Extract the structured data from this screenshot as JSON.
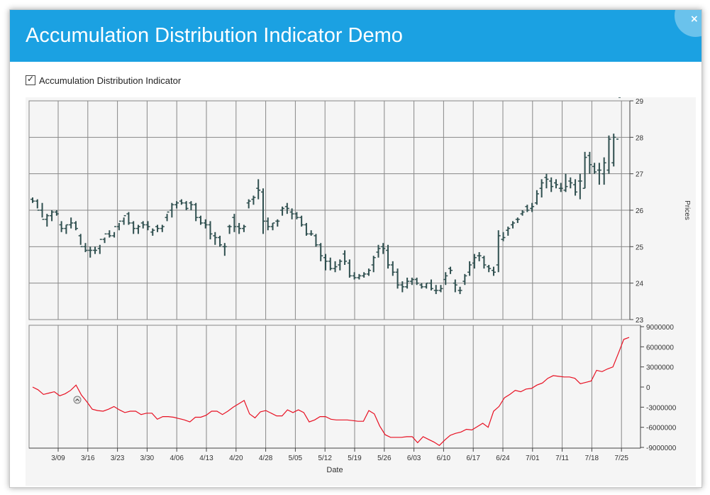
{
  "window": {
    "title": "Accumulation Distribution Indicator Demo",
    "close_glyph": "×",
    "header_color": "#1ba1e2"
  },
  "controls": {
    "indicator_checkbox": {
      "checked": true,
      "glyph": "✓",
      "label": "Accumulation Distribution Indicator"
    }
  },
  "icons": {
    "close": "close-icon",
    "checkbox": "check-icon",
    "collapse": "chevron-up-icon"
  },
  "chart_data": [
    {
      "type": "ohlc",
      "ylabel": "Prices",
      "ylim": [
        23,
        29
      ],
      "yticks": [
        "23",
        "24",
        "25",
        "26",
        "27",
        "28",
        "29"
      ],
      "grid": true,
      "bar_color": "#2f4f4f",
      "series": [
        {
          "o": [
            26.3,
            26.25,
            26.0,
            25.75,
            25.85,
            25.95,
            25.6,
            25.5,
            25.6,
            25.65,
            25.3,
            25.0,
            24.9,
            24.9,
            24.95,
            25.2,
            25.35,
            25.3,
            25.55,
            25.7,
            25.9,
            25.65,
            25.5,
            25.65,
            25.6,
            25.4,
            25.55,
            25.5,
            25.8,
            26.0,
            26.15,
            26.25,
            26.2,
            26.2,
            26.15,
            25.8,
            25.65,
            25.6,
            25.3,
            25.25,
            25.0,
            25.55,
            25.8,
            25.55,
            25.5,
            26.2,
            26.3,
            26.6,
            26.5,
            25.7,
            25.55,
            25.7,
            26.0,
            26.1,
            25.95,
            25.9,
            25.8,
            25.6,
            25.35,
            25.3,
            25.05,
            24.7,
            24.6,
            24.4,
            24.5,
            24.8,
            24.55,
            24.2,
            24.15,
            24.2,
            24.25,
            24.5,
            24.85,
            25.0,
            24.9,
            24.5,
            24.3,
            23.95,
            23.9,
            24.05,
            24.1,
            23.95,
            23.9,
            24.0,
            23.8,
            23.8,
            24.1,
            24.4,
            24.0,
            23.8,
            24.05,
            24.3,
            24.55,
            24.75,
            24.7,
            24.45,
            24.35,
            24.5,
            25.2,
            25.45,
            25.6,
            25.75,
            25.9,
            26.1,
            26.05,
            26.2,
            26.6,
            26.9,
            26.8,
            26.75,
            26.6,
            26.55,
            26.8,
            26.7,
            26.8,
            26.6,
            27.5,
            27.2,
            27.1,
            27.0,
            27.1,
            27.3,
            27.95
          ],
          "h": [
            26.35,
            26.3,
            26.2,
            25.9,
            26.0,
            26.0,
            25.7,
            25.6,
            25.8,
            25.7,
            25.35,
            25.1,
            25.0,
            25.0,
            25.05,
            25.25,
            25.45,
            25.4,
            25.65,
            25.8,
            25.95,
            25.7,
            25.6,
            25.7,
            25.7,
            25.5,
            25.6,
            25.6,
            25.9,
            26.2,
            26.25,
            26.3,
            26.25,
            26.25,
            26.2,
            25.85,
            25.75,
            25.7,
            25.4,
            25.3,
            25.1,
            25.6,
            25.9,
            25.65,
            25.6,
            26.3,
            26.4,
            26.85,
            26.6,
            25.8,
            25.65,
            25.75,
            26.1,
            26.2,
            26.05,
            25.95,
            25.85,
            25.65,
            25.45,
            25.35,
            25.1,
            24.8,
            24.7,
            24.6,
            24.65,
            24.9,
            24.65,
            24.3,
            24.25,
            24.3,
            24.4,
            24.75,
            25.05,
            25.1,
            25.05,
            24.6,
            24.4,
            24.05,
            24.15,
            24.15,
            24.15,
            24.0,
            24.0,
            24.1,
            23.95,
            23.95,
            24.3,
            24.45,
            24.1,
            23.9,
            24.25,
            24.6,
            24.8,
            24.85,
            24.75,
            24.5,
            24.45,
            25.45,
            25.4,
            25.55,
            25.7,
            25.8,
            26.0,
            26.15,
            26.2,
            26.55,
            26.85,
            27.0,
            26.9,
            26.85,
            26.75,
            27.0,
            26.9,
            26.85,
            27.0,
            27.6,
            27.6,
            27.3,
            27.3,
            27.45,
            28.05,
            28.1
          ],
          "l": [
            26.2,
            26.05,
            25.8,
            25.55,
            25.7,
            25.85,
            25.4,
            25.35,
            25.5,
            25.45,
            25.05,
            24.85,
            24.7,
            24.8,
            24.8,
            25.1,
            25.25,
            25.25,
            25.45,
            25.6,
            25.6,
            25.35,
            25.35,
            25.5,
            25.45,
            25.3,
            25.4,
            25.4,
            25.7,
            25.8,
            26.05,
            26.15,
            26.0,
            26.0,
            25.7,
            25.6,
            25.5,
            25.2,
            25.05,
            25.0,
            24.75,
            25.35,
            25.4,
            25.35,
            25.4,
            26.05,
            26.15,
            26.3,
            25.35,
            25.45,
            25.45,
            25.55,
            25.85,
            25.9,
            25.75,
            25.75,
            25.55,
            25.3,
            25.3,
            25.0,
            24.6,
            24.35,
            24.35,
            24.3,
            24.35,
            24.5,
            24.15,
            24.1,
            24.1,
            24.15,
            24.2,
            24.3,
            24.7,
            24.8,
            24.4,
            24.2,
            23.85,
            23.75,
            23.85,
            23.95,
            23.95,
            23.85,
            23.85,
            23.8,
            23.7,
            23.75,
            23.95,
            24.25,
            23.75,
            23.7,
            23.95,
            24.2,
            24.4,
            24.6,
            24.4,
            24.3,
            24.2,
            24.3,
            25.15,
            25.3,
            25.5,
            25.65,
            25.85,
            25.95,
            25.95,
            26.15,
            26.35,
            26.6,
            26.5,
            26.6,
            26.5,
            26.5,
            26.6,
            26.4,
            26.3,
            26.6,
            27.0,
            27.0,
            26.7,
            26.7,
            27.0,
            27.2
          ],
          "c": [
            26.25,
            26.0,
            25.75,
            25.85,
            25.95,
            25.9,
            25.5,
            25.6,
            25.65,
            25.5,
            25.0,
            24.9,
            24.9,
            24.9,
            25.2,
            25.35,
            25.3,
            25.55,
            25.7,
            25.85,
            25.65,
            25.5,
            25.55,
            25.6,
            25.55,
            25.45,
            25.5,
            25.55,
            25.95,
            26.15,
            26.2,
            26.2,
            26.05,
            26.15,
            25.8,
            25.65,
            25.6,
            25.35,
            25.25,
            25.05,
            25.0,
            25.55,
            25.55,
            25.5,
            25.55,
            26.25,
            26.35,
            26.55,
            25.7,
            25.55,
            25.65,
            25.7,
            26.05,
            26.05,
            25.9,
            25.8,
            25.6,
            25.35,
            25.35,
            25.05,
            24.75,
            24.6,
            24.4,
            24.45,
            24.6,
            24.6,
            24.2,
            24.15,
            24.2,
            24.25,
            24.35,
            24.7,
            24.95,
            24.95,
            24.5,
            24.3,
            23.95,
            23.9,
            24.05,
            24.1,
            24.0,
            23.9,
            24.0,
            23.85,
            23.8,
            23.85,
            24.2,
            24.35,
            23.95,
            23.8,
            24.2,
            24.5,
            24.7,
            24.75,
            24.5,
            24.4,
            24.3,
            25.3,
            25.25,
            25.5,
            25.65,
            25.75,
            25.95,
            26.0,
            26.1,
            26.45,
            26.75,
            26.85,
            26.65,
            26.7,
            26.6,
            26.65,
            26.75,
            26.5,
            26.8,
            27.45,
            27.25,
            27.05,
            27.1,
            27.3,
            27.95,
            28.0
          ]
        }
      ]
    },
    {
      "type": "line",
      "xlabel": "Date",
      "ylim": [
        -9000000,
        9000000
      ],
      "yticks": [
        "9000000",
        "6000000",
        "3000000",
        "0",
        "-3000000",
        "-6000000",
        "-9000000"
      ],
      "xticks": [
        "3/09",
        "3/16",
        "3/23",
        "3/30",
        "4/06",
        "4/13",
        "4/20",
        "4/28",
        "5/05",
        "5/12",
        "5/19",
        "5/26",
        "6/03",
        "6/10",
        "6/17",
        "6/24",
        "7/01",
        "7/11",
        "7/18",
        "7/25"
      ],
      "series": [
        {
          "color": "#e81123",
          "values": [
            0,
            -400000,
            -1100000,
            -900000,
            -700000,
            -1300000,
            -1000000,
            -500000,
            300000,
            -1200000,
            -2200000,
            -3300000,
            -3500000,
            -3600000,
            -3300000,
            -2900000,
            -3400000,
            -3800000,
            -3600000,
            -3600000,
            -4100000,
            -3900000,
            -3900000,
            -4800000,
            -4400000,
            -4400000,
            -4500000,
            -4700000,
            -4900000,
            -5200000,
            -4500000,
            -4500000,
            -4200000,
            -3600000,
            -3600000,
            -4100000,
            -3600000,
            -3000000,
            -2500000,
            -2000000,
            -4000000,
            -4600000,
            -3700000,
            -3500000,
            -3900000,
            -4300000,
            -4300000,
            -3400000,
            -3800000,
            -3400000,
            -3800000,
            -5200000,
            -4900000,
            -4400000,
            -4400000,
            -4800000,
            -4900000,
            -4900000,
            -4900000,
            -5000000,
            -5100000,
            -5100000,
            -3500000,
            -4000000,
            -5800000,
            -7100000,
            -7500000,
            -7500000,
            -7500000,
            -7400000,
            -7400000,
            -8300000,
            -7400000,
            -7800000,
            -8200000,
            -8700000,
            -7900000,
            -7200000,
            -6900000,
            -6700000,
            -6300000,
            -6400000,
            -5900000,
            -5400000,
            -6000000,
            -3600000,
            -2900000,
            -1600000,
            -1100000,
            -500000,
            -700000,
            -300000,
            -200000,
            300000,
            600000,
            1300000,
            1700000,
            1600000,
            1500000,
            1500000,
            1300000,
            500000,
            700000,
            900000,
            2500000,
            2300000,
            2700000,
            3000000,
            5000000,
            7100000,
            7400000
          ]
        }
      ]
    }
  ]
}
